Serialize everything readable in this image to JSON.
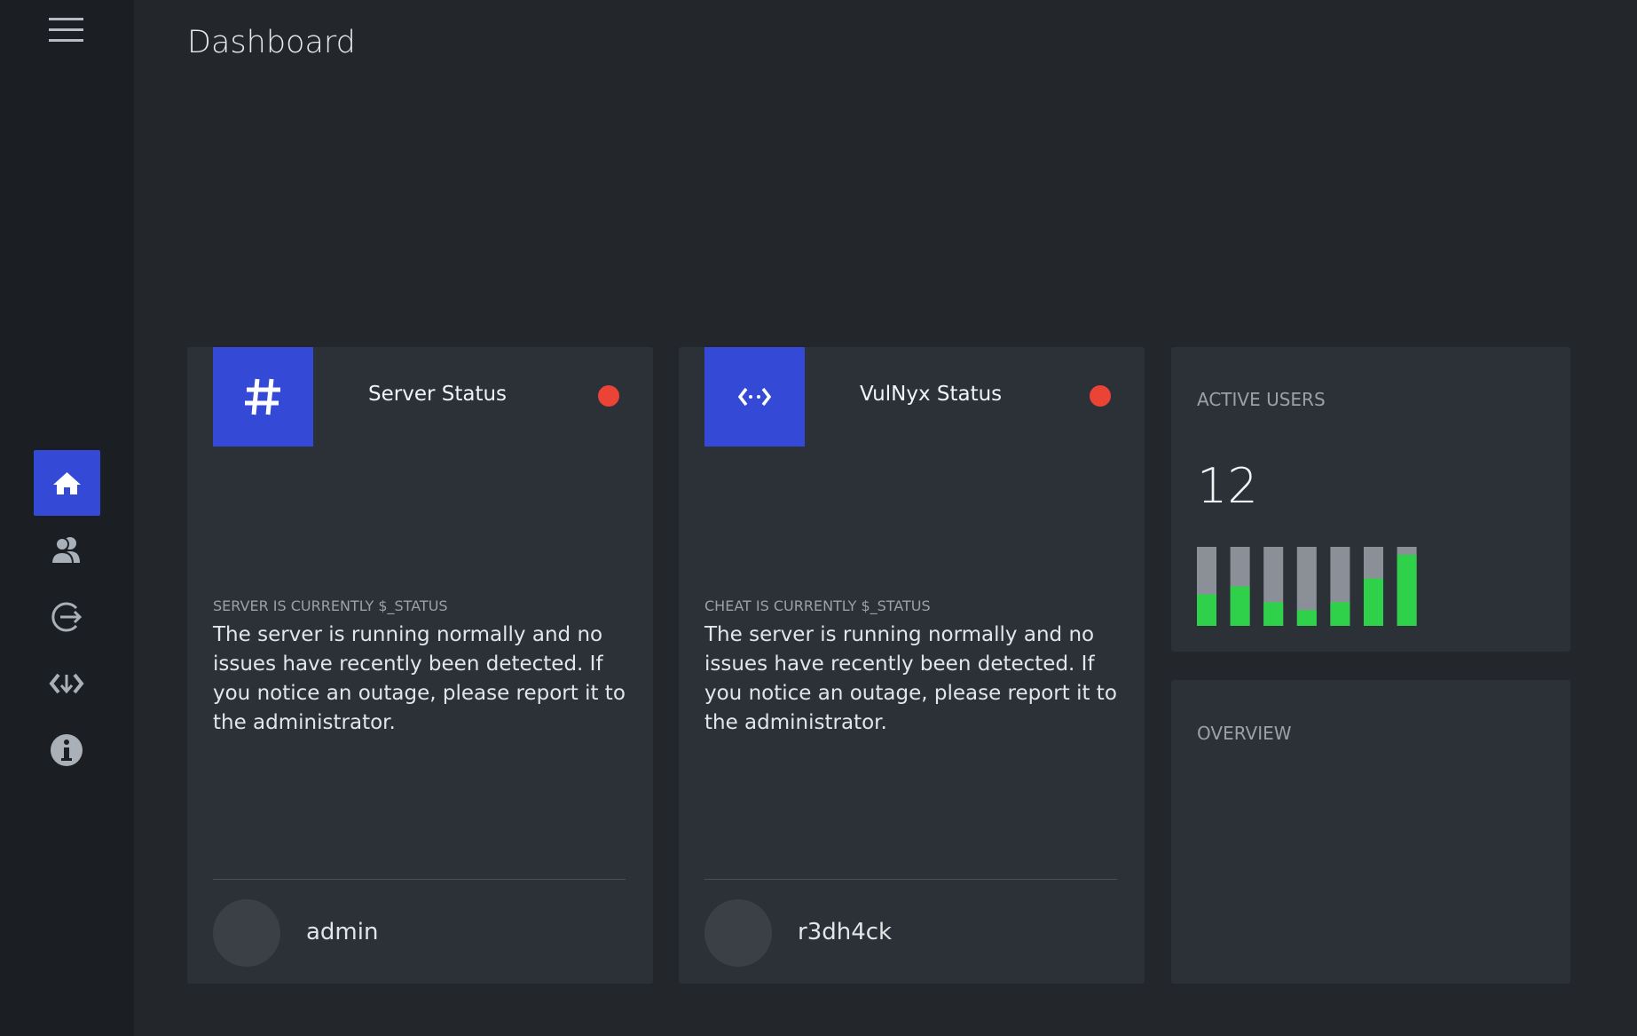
{
  "header": {
    "title": "Dashboard"
  },
  "cards": [
    {
      "title": "Server Status",
      "label": "SERVER IS CURRENTLY $_STATUS",
      "text": "The server is running normally and no issues have recently been detected. If you notice an outage, please report it to the administrator.",
      "user": "admin"
    },
    {
      "title": "VulNyx Status",
      "label": "CHEAT IS CURRENTLY $_STATUS",
      "text": "The server is running normally and no issues have recently been detected. If you notice an outage, please report it to the administrator.",
      "user": "r3dh4ck"
    }
  ],
  "active_users": {
    "title": "ACTIVE USERS",
    "value": 12,
    "bars": [
      40,
      50,
      30,
      20,
      30,
      60,
      90
    ],
    "bars_ylim": [
      0,
      100
    ]
  },
  "overview": {
    "title": "OVERVIEW"
  }
}
